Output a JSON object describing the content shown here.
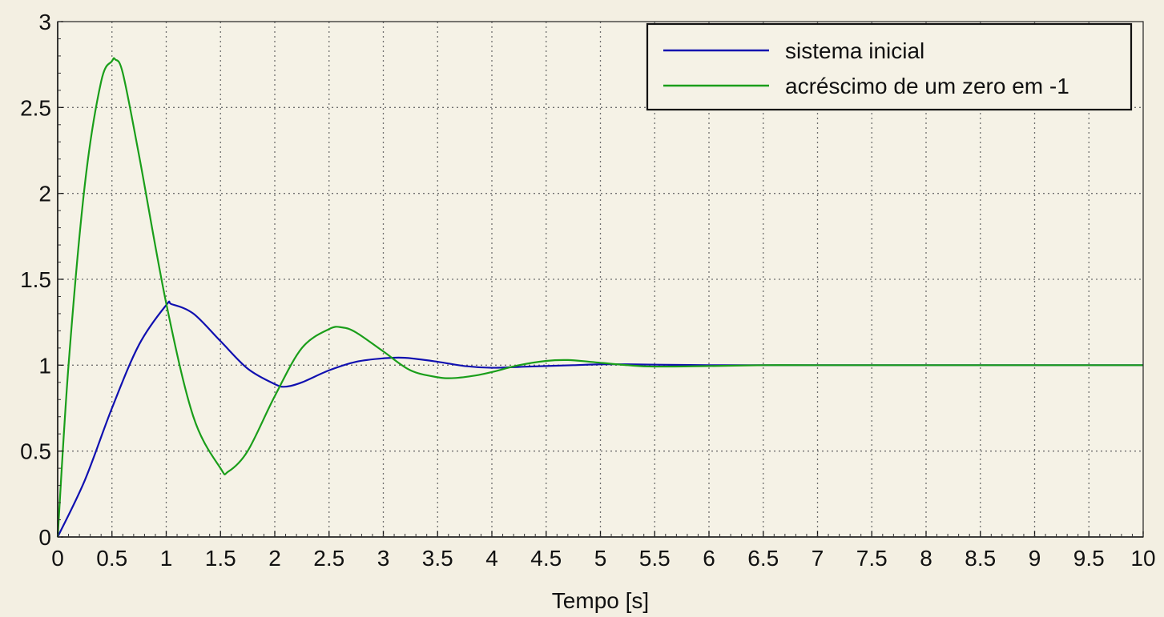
{
  "chart_data": {
    "type": "line",
    "title": "",
    "xlabel": "Tempo [s]",
    "ylabel": "",
    "xlim": [
      0,
      10
    ],
    "ylim": [
      0,
      3
    ],
    "x_ticks": [
      "0",
      "0.5",
      "1",
      "1.5",
      "2",
      "2.5",
      "3",
      "3.5",
      "4",
      "4.5",
      "5",
      "5.5",
      "6",
      "6.5",
      "7",
      "7.5",
      "8",
      "8.5",
      "9",
      "9.5",
      "10"
    ],
    "y_ticks": [
      "0",
      "0.5",
      "1",
      "1.5",
      "2",
      "2.5",
      "3"
    ],
    "grid": true,
    "legend_position": "top-right",
    "series": [
      {
        "name": "sistema inicial",
        "color": "#1010b0",
        "x": [
          0,
          0.25,
          0.5,
          0.75,
          1.0,
          1.05,
          1.25,
          1.5,
          1.75,
          2.0,
          2.1,
          2.25,
          2.5,
          2.75,
          3.0,
          3.2,
          3.5,
          3.75,
          4.0,
          4.25,
          4.5,
          4.75,
          5.0,
          5.25,
          5.5,
          6.0,
          6.5,
          7.0,
          8.0,
          9.0,
          10.0
        ],
        "values": [
          0,
          0.33,
          0.75,
          1.12,
          1.35,
          1.355,
          1.3,
          1.14,
          0.98,
          0.89,
          0.875,
          0.9,
          0.97,
          1.02,
          1.04,
          1.043,
          1.02,
          0.995,
          0.985,
          0.99,
          0.995,
          1.0,
          1.005,
          1.005,
          1.003,
          1.0,
          1.0,
          1.0,
          1.0,
          1.0,
          1.0
        ]
      },
      {
        "name": "acréscimo de um zero em -1",
        "color": "#1a9e1a",
        "x": [
          0,
          0.1,
          0.25,
          0.4,
          0.5,
          0.53,
          0.6,
          0.75,
          1.0,
          1.25,
          1.5,
          1.57,
          1.75,
          2.0,
          2.25,
          2.5,
          2.62,
          2.75,
          3.0,
          3.25,
          3.5,
          3.65,
          3.85,
          4.0,
          4.25,
          4.5,
          4.7,
          4.9,
          5.25,
          5.5,
          6.0,
          6.5,
          7.0,
          8.0,
          9.0,
          10.0
        ],
        "values": [
          0,
          1.0,
          2.05,
          2.65,
          2.77,
          2.78,
          2.7,
          2.22,
          1.36,
          0.7,
          0.4,
          0.38,
          0.5,
          0.82,
          1.1,
          1.21,
          1.22,
          1.19,
          1.08,
          0.97,
          0.93,
          0.925,
          0.94,
          0.96,
          1.0,
          1.025,
          1.03,
          1.02,
          1.0,
          0.992,
          0.995,
          1.0,
          1.0,
          1.0,
          1.0,
          1.0
        ]
      }
    ]
  }
}
